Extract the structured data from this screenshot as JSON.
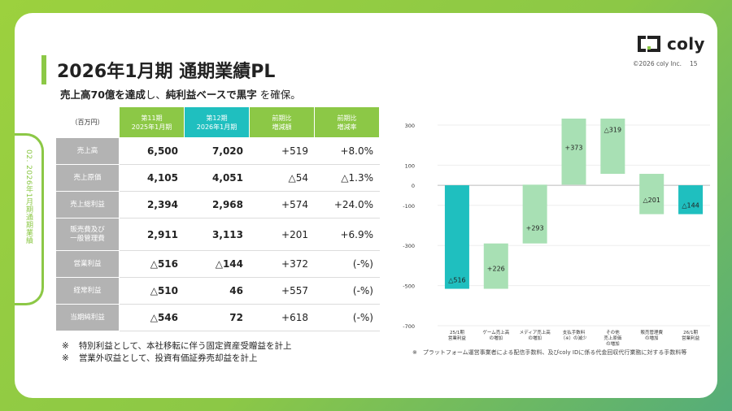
{
  "header": {
    "title": "2026年1月期 通期業績PL",
    "subtitle_bold1": "売上高70億を達成",
    "subtitle_mid": "し、",
    "subtitle_bold2": "純利益ベースで黒字",
    "subtitle_end": " を確保。",
    "side_label": "02. 2026年1月期通期業績",
    "logo_text": "coly",
    "copyright": "©2026 coly Inc.",
    "page": "15"
  },
  "table": {
    "unit": "（百万円）",
    "col11_l1": "第11期",
    "col11_l2": "2025年1月期",
    "col12_l1": "第12期",
    "col12_l2": "2026年1月期",
    "coldiff_l1": "前期比",
    "coldiff_l2": "増減額",
    "colrate_l1": "前期比",
    "colrate_l2": "増減率",
    "rows": [
      {
        "label": "売上高",
        "label2": "",
        "v11": "6,500",
        "v12": "7,020",
        "diff": "+519",
        "rate": "+8.0%"
      },
      {
        "label": "売上原価",
        "label2": "",
        "v11": "4,105",
        "v12": "4,051",
        "diff": "△54",
        "rate": "△1.3%"
      },
      {
        "label": "売上総利益",
        "label2": "",
        "v11": "2,394",
        "v12": "2,968",
        "diff": "+574",
        "rate": "+24.0%"
      },
      {
        "label": "販売費及び",
        "label2": "一般管理費",
        "v11": "2,911",
        "v12": "3,113",
        "diff": "+201",
        "rate": "+6.9%"
      },
      {
        "label": "営業利益",
        "label2": "",
        "v11": "△516",
        "v12": "△144",
        "diff": "+372",
        "rate": "(-%)"
      },
      {
        "label": "経常利益",
        "label2": "",
        "v11": "△510",
        "v12": "46",
        "diff": "+557",
        "rate": "(-%)"
      },
      {
        "label": "当期純利益",
        "label2": "",
        "v11": "△546",
        "v12": "72",
        "diff": "+618",
        "rate": "(-%)"
      }
    ]
  },
  "notes": [
    {
      "mark": "※",
      "text": "特別利益として、本社移転に伴う固定資産受贈益を計上"
    },
    {
      "mark": "※",
      "text": "営業外収益として、投資有価証券売却益を計上"
    }
  ],
  "chart_note": "※　プラットフォーム運営事業者による配信手数料、及びcoly IDに係る代金回収代行業務に対する手数料等",
  "colors": {
    "green": "#8cc846",
    "teal": "#1fbfbf",
    "lightgreen": "#a8e0b4",
    "gray": "#b3b3b3"
  },
  "chart_data": {
    "type": "waterfall",
    "title": "",
    "ylim": [
      -700,
      300
    ],
    "yticks": [
      300,
      100,
      0,
      -100,
      -300,
      -500,
      -700
    ],
    "ytick_labels": [
      "300",
      "100",
      "0",
      "-100",
      "-300",
      "-500",
      "-700"
    ],
    "bars": [
      {
        "l1": "25/1期",
        "l2": "営業利益",
        "l3": "",
        "start": 0,
        "end": -516,
        "label": "△516",
        "kind": "total"
      },
      {
        "l1": "ゲーム売上高",
        "l2": "の増加",
        "l3": "",
        "start": -516,
        "end": -290,
        "label": "+226",
        "kind": "delta"
      },
      {
        "l1": "メディア売上高",
        "l2": "の増加",
        "l3": "",
        "start": -290,
        "end": 3,
        "label": "+293",
        "kind": "delta"
      },
      {
        "l1": "支払手数料",
        "l2": "（※）の減少",
        "l3": "",
        "start": 3,
        "end": 376,
        "label": "+373",
        "kind": "delta"
      },
      {
        "l1": "その他",
        "l2": "売上原価",
        "l3": "の増加",
        "start": 376,
        "end": 57,
        "label": "△319",
        "kind": "delta"
      },
      {
        "l1": "販売管理費",
        "l2": "の増加",
        "l3": "",
        "start": 57,
        "end": -144,
        "label": "△201",
        "kind": "delta"
      },
      {
        "l1": "26/1期",
        "l2": "営業利益",
        "l3": "",
        "start": 0,
        "end": -144,
        "label": "△144",
        "kind": "total"
      }
    ]
  }
}
